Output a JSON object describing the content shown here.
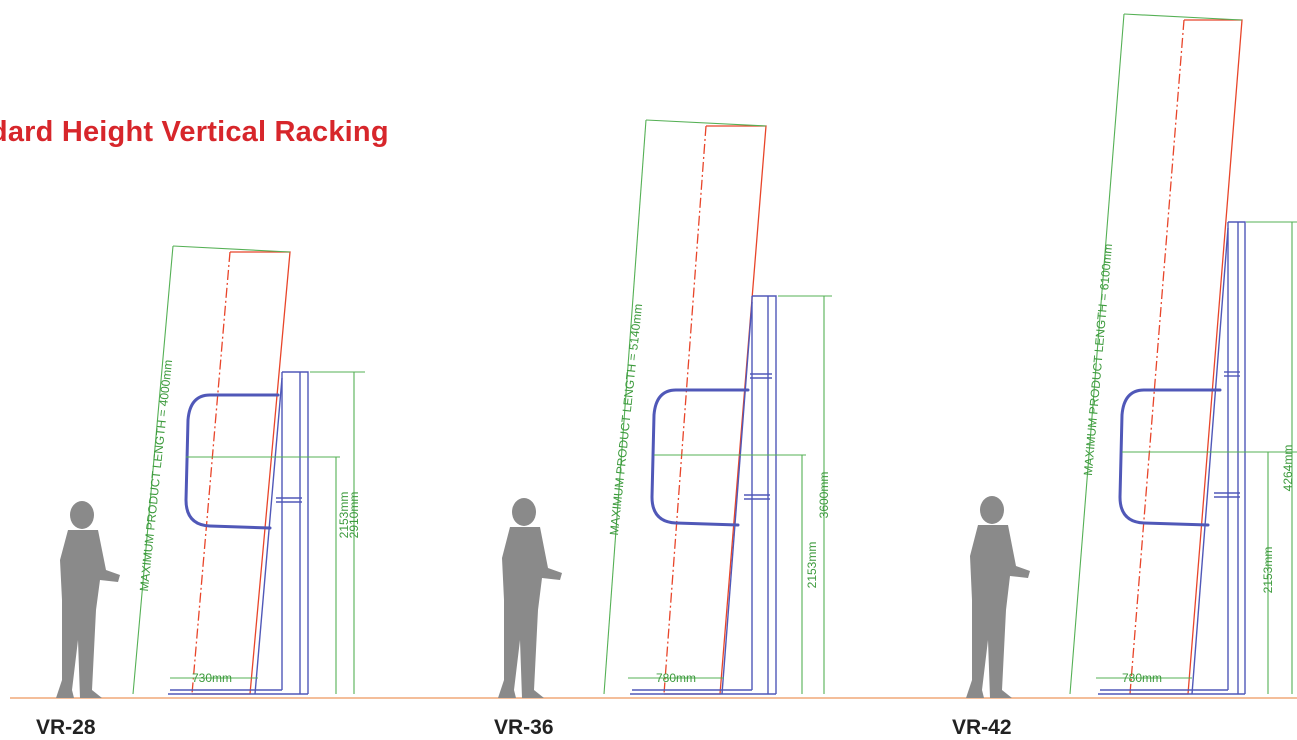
{
  "title": "ndard Height Vertical Racking",
  "colors": {
    "title": "#d7262b",
    "dimension_lines": "#55b055",
    "product_outline": "#e8452a",
    "rack_structure": "#5058b8",
    "ground": "#f0a878",
    "silhouette": "#8a8a8a"
  },
  "icons": [
    "person-silhouette-icon"
  ],
  "racks": [
    {
      "model": "VR-28",
      "max_length_label": "MAXIMUM PRODUCT LENGTH = 4000mm",
      "depth_label": "730mm",
      "frame_height_label": "2910mm",
      "mid_height_label": "2153mm"
    },
    {
      "model": "VR-36",
      "max_length_label": "MAXIMUM PRODUCT LENGTH = 5140mm",
      "depth_label": "780mm",
      "frame_height_label": "3600mm",
      "mid_height_label": "2153mm"
    },
    {
      "model": "VR-42",
      "max_length_label": "MAXIMUM PRODUCT LENGTH = 6100mm",
      "depth_label": "780mm",
      "frame_height_label": "4264mm",
      "mid_height_label": "2153mm"
    }
  ]
}
